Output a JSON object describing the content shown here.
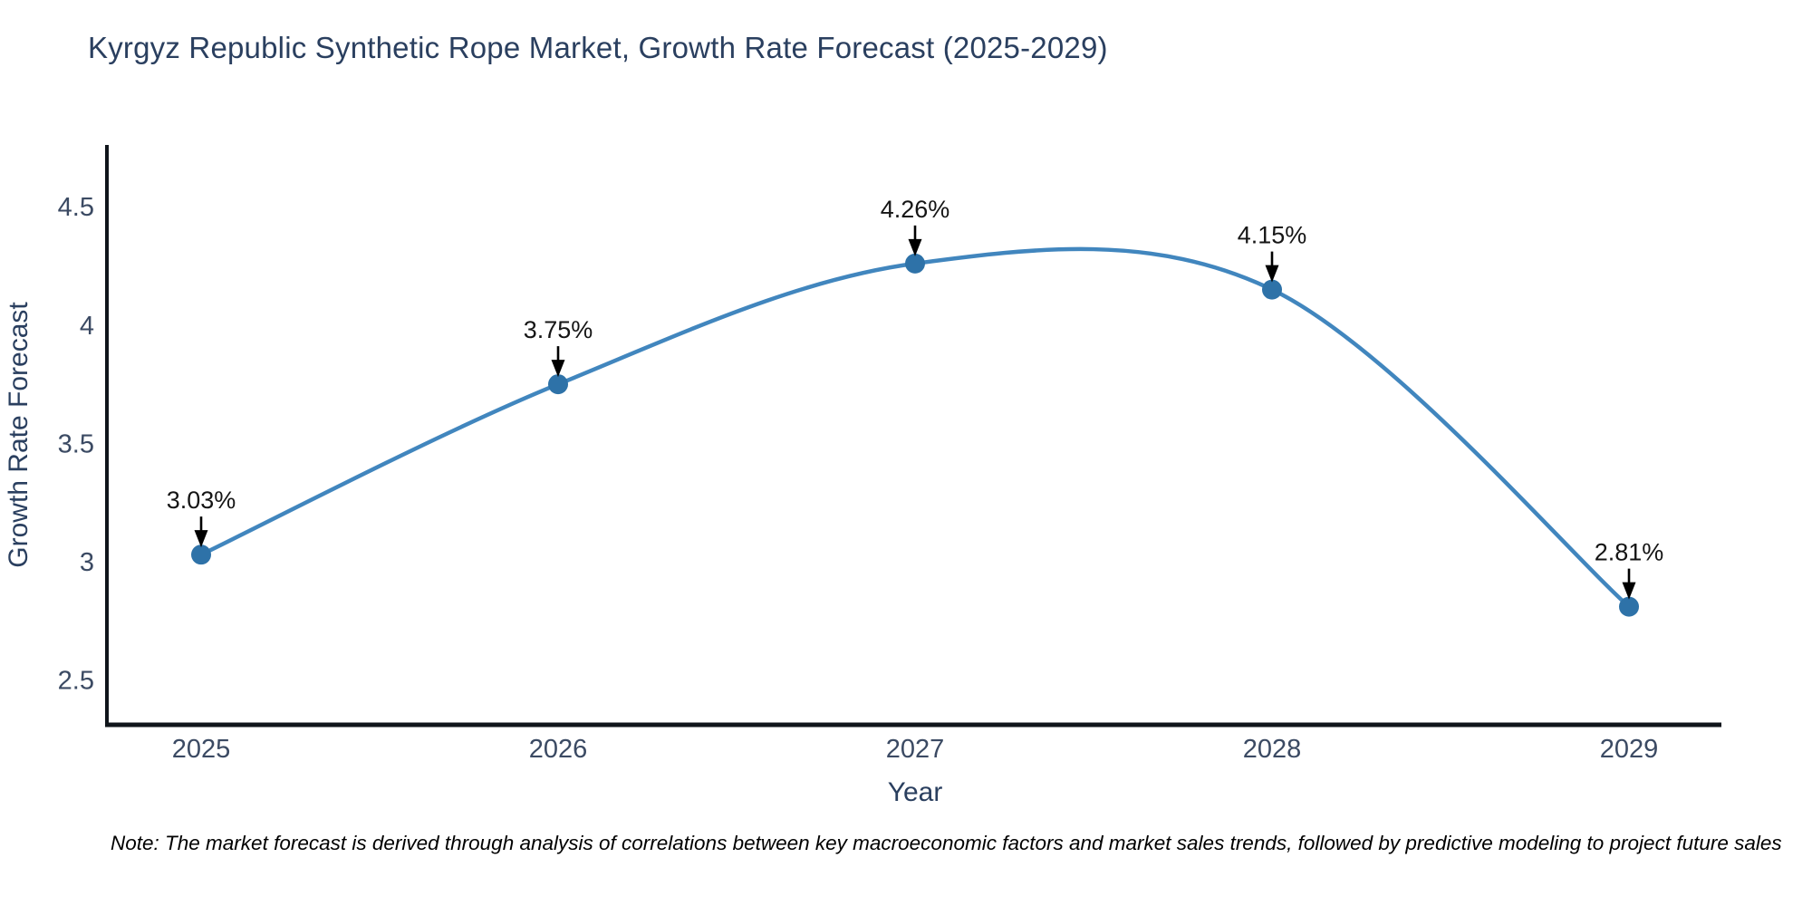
{
  "title": "Kyrgyz Republic Synthetic Rope Market, Growth Rate Forecast (2025-2029)",
  "note": "Note: The market forecast is derived through analysis of correlations between key macroeconomic factors and market sales trends, followed by predictive modeling to project future sales",
  "chart_data": {
    "type": "line",
    "curve": "spline",
    "title": "Kyrgyz Republic Synthetic Rope Market, Growth Rate Forecast (2025-2029)",
    "x": [
      2025,
      2026,
      2027,
      2028,
      2029
    ],
    "series": [
      {
        "name": "Growth Rate Forecast",
        "values": [
          3.03,
          3.75,
          4.26,
          4.15,
          2.81
        ]
      }
    ],
    "point_labels": [
      "3.03%",
      "3.75%",
      "4.26%",
      "4.15%",
      "2.81%"
    ],
    "xlabel": "Year",
    "ylabel": "Growth Rate Forecast",
    "yticks": [
      2.5,
      3,
      3.5,
      4,
      4.5
    ],
    "ylim": [
      2.31,
      4.76
    ],
    "grid": false,
    "legend": false,
    "annotations": "value labels with downward black arrows above each point",
    "colors": {
      "line": "#4186be",
      "marker": "#2e72a8",
      "axis": "#10151b",
      "tick_text": "#3b4a63",
      "axis_title_text": "#2a3f5f",
      "annotation_text": "#151515",
      "title_text": "#2a3f5f",
      "background": "#ffffff"
    }
  }
}
